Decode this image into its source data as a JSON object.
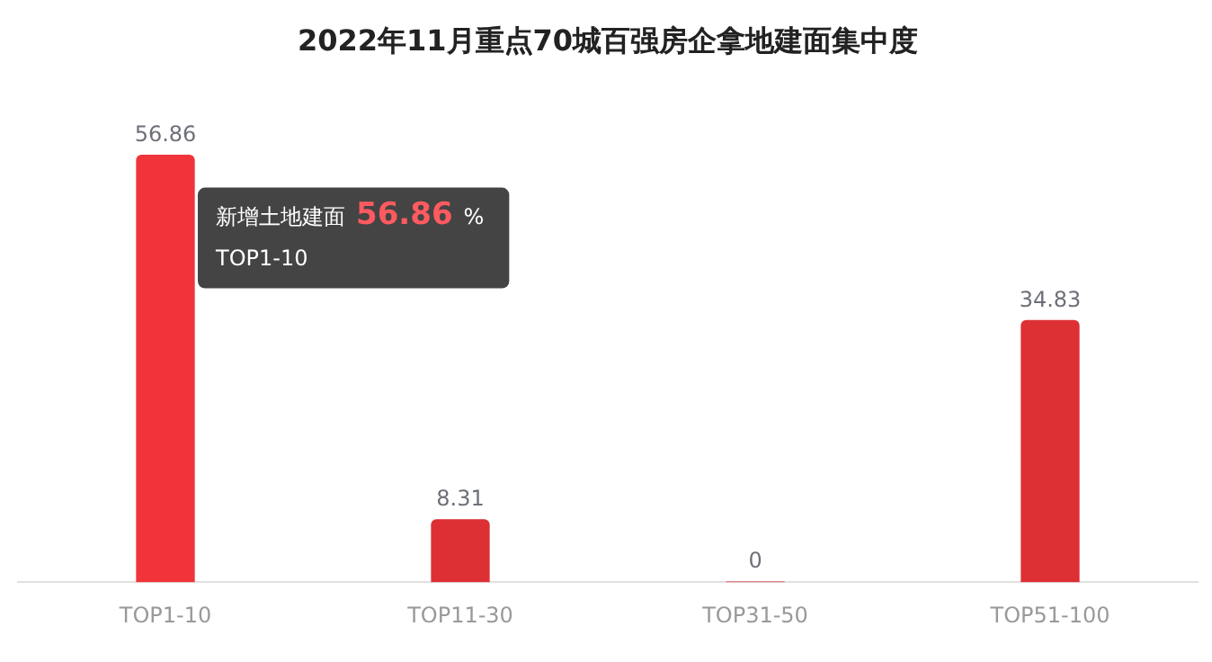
{
  "chart_data": {
    "type": "bar",
    "title": "2022年11月重点70城百强房企拿地建面集中度",
    "categories": [
      "TOP1-10",
      "TOP11-30",
      "TOP31-50",
      "TOP51-100"
    ],
    "values": [
      56.86,
      8.31,
      0,
      34.83
    ],
    "colors": [
      "#f0343a",
      "#dc3035",
      "#dc3035",
      "#dc3035"
    ],
    "tick_labels": "x",
    "data_labels": true,
    "grid": false,
    "legend": false,
    "annotations": [
      "新增土地建面",
      "56.86",
      "%",
      "TOP1-10"
    ]
  }
}
